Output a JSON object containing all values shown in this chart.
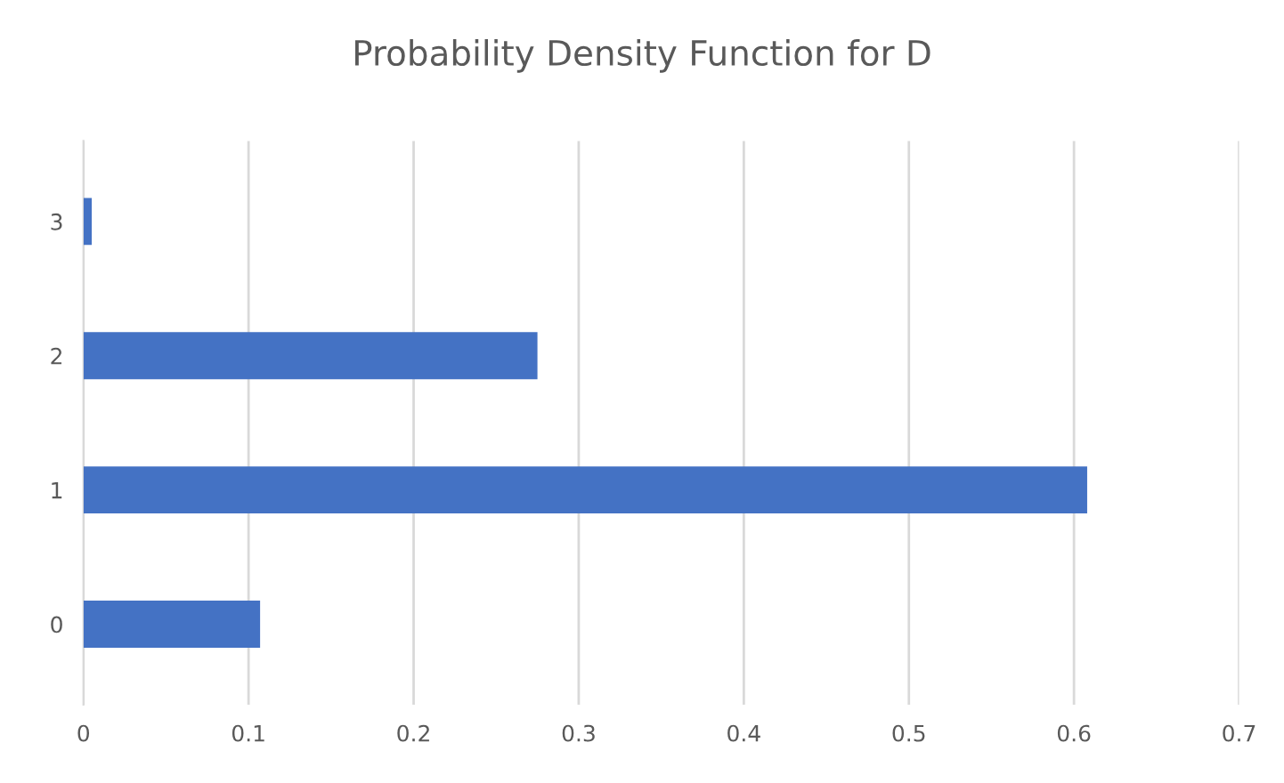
{
  "chart_data": {
    "type": "bar",
    "orientation": "horizontal",
    "title": "Probability Density Function for D",
    "categories": [
      "3",
      "2",
      "1",
      "0"
    ],
    "values": [
      0.005,
      0.275,
      0.608,
      0.107
    ],
    "color": "#4472c4",
    "xlim": [
      0,
      0.7
    ],
    "xticks": [
      0,
      0.1,
      0.2,
      0.3,
      0.4,
      0.5,
      0.6,
      0.7
    ],
    "grid": "x"
  }
}
